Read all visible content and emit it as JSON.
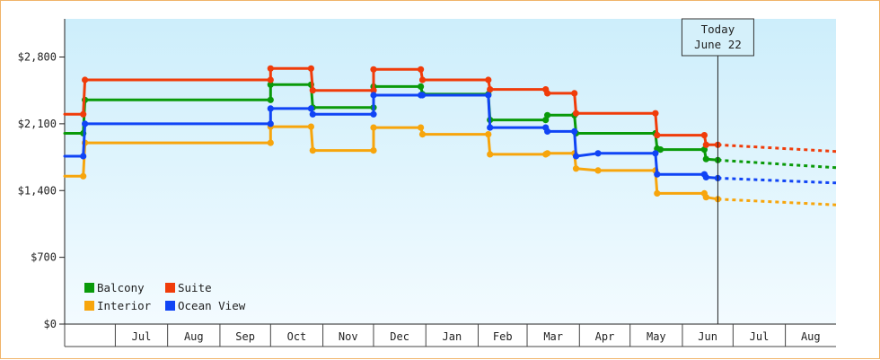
{
  "chart_data": {
    "type": "line",
    "step": true,
    "ylim": [
      0,
      3200
    ],
    "ytick_values": [
      0,
      700,
      1400,
      2100,
      2800
    ],
    "ytick_labels": [
      "$0",
      "$700",
      "$1,400",
      "$2,100",
      "$2,800"
    ],
    "x_range": [
      "2011-06-01",
      "2012-08-31"
    ],
    "months": [
      {
        "label": "Jul",
        "start": "2011-07-01"
      },
      {
        "label": "Aug",
        "start": "2011-08-01"
      },
      {
        "label": "Sep",
        "start": "2011-09-01"
      },
      {
        "label": "Oct",
        "start": "2011-10-01"
      },
      {
        "label": "Nov",
        "start": "2011-11-01"
      },
      {
        "label": "Dec",
        "start": "2011-12-01"
      },
      {
        "label": "Jan",
        "start": "2012-01-01"
      },
      {
        "label": "Feb",
        "start": "2012-02-01"
      },
      {
        "label": "Mar",
        "start": "2012-03-01"
      },
      {
        "label": "Apr",
        "start": "2012-04-01"
      },
      {
        "label": "May",
        "start": "2012-05-01"
      },
      {
        "label": "Jun",
        "start": "2012-06-01"
      },
      {
        "label": "Jul",
        "start": "2012-07-01"
      },
      {
        "label": "Aug",
        "start": "2012-08-01"
      }
    ],
    "today": {
      "date": "2012-06-22",
      "label_line1": "Today",
      "label_line2": "June 22"
    },
    "series": [
      {
        "name": "Balcony",
        "color": "#0a9a0a",
        "points": [
          [
            "2011-06-01",
            2000
          ],
          [
            "2011-06-12",
            2000
          ],
          [
            "2011-06-13",
            2350
          ],
          [
            "2011-10-01",
            2350
          ],
          [
            "2011-10-01",
            2510
          ],
          [
            "2011-10-25",
            2510
          ],
          [
            "2011-10-26",
            2270
          ],
          [
            "2011-12-01",
            2270
          ],
          [
            "2011-12-01",
            2490
          ],
          [
            "2011-12-29",
            2490
          ],
          [
            "2011-12-30",
            2410
          ],
          [
            "2012-02-07",
            2410
          ],
          [
            "2012-02-08",
            2140
          ],
          [
            "2012-03-12",
            2140
          ],
          [
            "2012-03-13",
            2190
          ],
          [
            "2012-03-29",
            2190
          ],
          [
            "2012-03-30",
            2000
          ],
          [
            "2012-05-16",
            2000
          ],
          [
            "2012-05-17",
            1840
          ],
          [
            "2012-05-19",
            1830
          ],
          [
            "2012-06-14",
            1830
          ],
          [
            "2012-06-15",
            1730
          ],
          [
            "2012-06-22",
            1720
          ]
        ],
        "forecast": [
          [
            "2012-06-22",
            1720
          ],
          [
            "2012-08-31",
            1640
          ]
        ]
      },
      {
        "name": "Suite",
        "color": "#f03c0a",
        "points": [
          [
            "2011-06-01",
            2200
          ],
          [
            "2011-06-12",
            2200
          ],
          [
            "2011-06-13",
            2560
          ],
          [
            "2011-10-01",
            2560
          ],
          [
            "2011-10-01",
            2680
          ],
          [
            "2011-10-25",
            2680
          ],
          [
            "2011-10-26",
            2450
          ],
          [
            "2011-12-01",
            2450
          ],
          [
            "2011-12-01",
            2670
          ],
          [
            "2011-12-29",
            2670
          ],
          [
            "2011-12-30",
            2560
          ],
          [
            "2012-02-07",
            2560
          ],
          [
            "2012-02-08",
            2460
          ],
          [
            "2012-03-12",
            2460
          ],
          [
            "2012-03-13",
            2420
          ],
          [
            "2012-03-29",
            2420
          ],
          [
            "2012-03-30",
            2210
          ],
          [
            "2012-05-16",
            2210
          ],
          [
            "2012-05-17",
            1980
          ],
          [
            "2012-06-14",
            1980
          ],
          [
            "2012-06-15",
            1880
          ],
          [
            "2012-06-22",
            1880
          ]
        ],
        "forecast": [
          [
            "2012-06-22",
            1880
          ],
          [
            "2012-08-31",
            1810
          ]
        ]
      },
      {
        "name": "Interior",
        "color": "#f7a50c",
        "points": [
          [
            "2011-06-01",
            1550
          ],
          [
            "2011-06-12",
            1550
          ],
          [
            "2011-06-13",
            1900
          ],
          [
            "2011-10-01",
            1900
          ],
          [
            "2011-10-01",
            2070
          ],
          [
            "2011-10-25",
            2070
          ],
          [
            "2011-10-26",
            1820
          ],
          [
            "2011-12-01",
            1820
          ],
          [
            "2011-12-01",
            2060
          ],
          [
            "2011-12-29",
            2060
          ],
          [
            "2011-12-30",
            1990
          ],
          [
            "2012-02-07",
            1990
          ],
          [
            "2012-02-08",
            1780
          ],
          [
            "2012-03-12",
            1780
          ],
          [
            "2012-03-13",
            1790
          ],
          [
            "2012-03-29",
            1790
          ],
          [
            "2012-03-30",
            1630
          ],
          [
            "2012-04-12",
            1610
          ],
          [
            "2012-05-16",
            1610
          ],
          [
            "2012-05-17",
            1370
          ],
          [
            "2012-06-14",
            1370
          ],
          [
            "2012-06-15",
            1330
          ],
          [
            "2012-06-22",
            1310
          ]
        ],
        "forecast": [
          [
            "2012-06-22",
            1310
          ],
          [
            "2012-08-31",
            1250
          ]
        ]
      },
      {
        "name": "Ocean View",
        "color": "#1044f5",
        "points": [
          [
            "2011-06-01",
            1760
          ],
          [
            "2011-06-12",
            1760
          ],
          [
            "2011-06-13",
            2100
          ],
          [
            "2011-10-01",
            2100
          ],
          [
            "2011-10-01",
            2260
          ],
          [
            "2011-10-25",
            2260
          ],
          [
            "2011-10-26",
            2200
          ],
          [
            "2011-12-01",
            2200
          ],
          [
            "2011-12-01",
            2400
          ],
          [
            "2011-12-29",
            2400
          ],
          [
            "2011-12-30",
            2400
          ],
          [
            "2012-02-07",
            2400
          ],
          [
            "2012-02-08",
            2060
          ],
          [
            "2012-03-12",
            2060
          ],
          [
            "2012-03-13",
            2020
          ],
          [
            "2012-03-29",
            2020
          ],
          [
            "2012-03-30",
            1760
          ],
          [
            "2012-04-12",
            1790
          ],
          [
            "2012-05-16",
            1790
          ],
          [
            "2012-05-17",
            1570
          ],
          [
            "2012-06-14",
            1570
          ],
          [
            "2012-06-15",
            1540
          ],
          [
            "2012-06-22",
            1530
          ]
        ],
        "forecast": [
          [
            "2012-06-22",
            1530
          ],
          [
            "2012-08-31",
            1480
          ]
        ]
      }
    ],
    "legend": {
      "placement": "bottom-left",
      "order": [
        [
          "Balcony",
          "Suite"
        ],
        [
          "Interior",
          "Ocean View"
        ]
      ]
    },
    "grid": false
  }
}
